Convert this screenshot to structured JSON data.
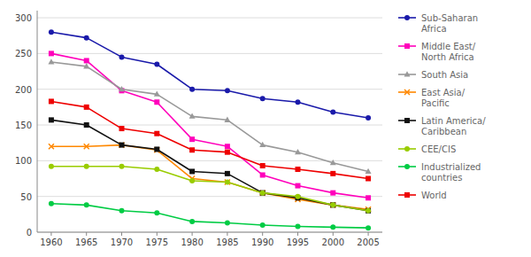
{
  "chart_data": {
    "type": "line",
    "x": [
      1960,
      1965,
      1970,
      1975,
      1980,
      1985,
      1990,
      1995,
      2000,
      2005
    ],
    "series": [
      {
        "name": "Sub-Saharan\nAfrica",
        "color": "#1a1aaa",
        "marker": "circle",
        "values": [
          280,
          272,
          245,
          235,
          200,
          198,
          187,
          182,
          168,
          160
        ]
      },
      {
        "name": "Middle East/\nNorth Africa",
        "color": "#ff00bb",
        "marker": "square",
        "values": [
          250,
          240,
          198,
          182,
          130,
          120,
          80,
          65,
          55,
          48
        ]
      },
      {
        "name": "South Asia",
        "color": "#999999",
        "marker": "triangle",
        "values": [
          238,
          232,
          200,
          193,
          162,
          157,
          122,
          112,
          97,
          85
        ]
      },
      {
        "name": "East Asia/\nPacific",
        "color": "#ff8800",
        "marker": "x",
        "values": [
          120,
          120,
          122,
          115,
          75,
          70,
          55,
          46,
          38,
          32
        ]
      },
      {
        "name": "Latin America/\nCaribbean",
        "color": "#111111",
        "marker": "square",
        "values": [
          157,
          150,
          122,
          116,
          85,
          82,
          55,
          48,
          38,
          30
        ]
      },
      {
        "name": "CEE/CIS",
        "color": "#99cc00",
        "marker": "circle",
        "values": [
          92,
          92,
          92,
          88,
          72,
          70,
          55,
          50,
          38,
          30
        ]
      },
      {
        "name": "Industrialized\ncountries",
        "color": "#00cc44",
        "marker": "circle",
        "values": [
          40,
          38,
          30,
          27,
          15,
          13,
          10,
          8,
          7,
          6
        ]
      },
      {
        "name": "World",
        "color": "#ee0000",
        "marker": "square",
        "values": [
          183,
          175,
          145,
          138,
          115,
          112,
          93,
          88,
          82,
          75
        ]
      }
    ],
    "xlim": [
      1958,
      2007
    ],
    "ylim": [
      0,
      310
    ],
    "xticks": [
      1960,
      1965,
      1970,
      1975,
      1980,
      1985,
      1990,
      1995,
      2000,
      2005
    ],
    "yticks": [
      0,
      50,
      100,
      150,
      200,
      250,
      300
    ],
    "grid": true,
    "legend": "right"
  }
}
